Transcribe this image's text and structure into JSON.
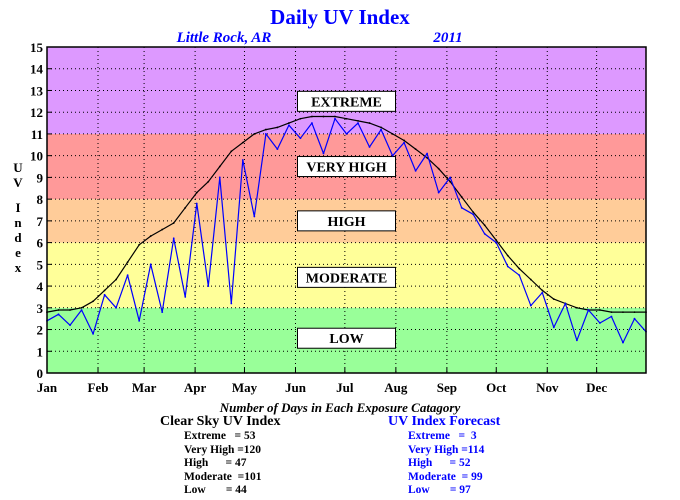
{
  "chart_data": {
    "type": "line",
    "title": "Daily UV Index",
    "subtitle_location": "Little Rock, AR",
    "subtitle_year": "2011",
    "ylabel": "UV Index",
    "ylim": [
      0,
      15
    ],
    "yticks": [
      0,
      1,
      2,
      3,
      4,
      5,
      6,
      7,
      8,
      9,
      10,
      11,
      12,
      13,
      14,
      15
    ],
    "xlim": [
      1,
      365
    ],
    "xticks": [
      {
        "label": "Jan",
        "day": 1
      },
      {
        "label": "Feb",
        "day": 32
      },
      {
        "label": "Mar",
        "day": 60
      },
      {
        "label": "Apr",
        "day": 91
      },
      {
        "label": "May",
        "day": 121
      },
      {
        "label": "Jun",
        "day": 152
      },
      {
        "label": "Jul",
        "day": 182
      },
      {
        "label": "Aug",
        "day": 213
      },
      {
        "label": "Sep",
        "day": 244
      },
      {
        "label": "Oct",
        "day": 274
      },
      {
        "label": "Nov",
        "day": 305
      },
      {
        "label": "Dec",
        "day": 335
      }
    ],
    "grid": true,
    "zones": [
      {
        "label": "LOW",
        "min": 0,
        "max": 3,
        "color": "#99ff99"
      },
      {
        "label": "MODERATE",
        "min": 3,
        "max": 6,
        "color": "#ffff99"
      },
      {
        "label": "HIGH",
        "min": 6,
        "max": 8,
        "color": "#ffcc99"
      },
      {
        "label": "VERY HIGH",
        "min": 8,
        "max": 11,
        "color": "#ff9999"
      },
      {
        "label": "EXTREME",
        "min": 11,
        "max": 15,
        "color": "#dd99ff"
      }
    ],
    "series": [
      {
        "name": "Clear Sky UV Index",
        "color": "#000000",
        "x": [
          1,
          8,
          15,
          22,
          29,
          36,
          43,
          50,
          57,
          64,
          71,
          78,
          85,
          92,
          99,
          106,
          113,
          120,
          127,
          134,
          141,
          148,
          155,
          162,
          169,
          176,
          183,
          190,
          197,
          204,
          211,
          218,
          225,
          232,
          239,
          246,
          253,
          260,
          267,
          274,
          281,
          288,
          295,
          302,
          309,
          316,
          323,
          330,
          337,
          344,
          351,
          358,
          365
        ],
        "y": [
          2.8,
          2.9,
          2.9,
          3.0,
          3.3,
          3.8,
          4.3,
          5.1,
          5.9,
          6.3,
          6.6,
          6.9,
          7.6,
          8.3,
          8.8,
          9.5,
          10.2,
          10.6,
          11.0,
          11.2,
          11.3,
          11.5,
          11.7,
          11.8,
          11.8,
          11.8,
          11.7,
          11.6,
          11.5,
          11.3,
          11.0,
          10.7,
          10.3,
          9.9,
          9.4,
          8.8,
          8.1,
          7.4,
          6.8,
          6.1,
          5.4,
          4.8,
          4.3,
          3.8,
          3.4,
          3.2,
          3.0,
          2.9,
          2.9,
          2.8,
          2.8,
          2.8,
          2.8
        ]
      },
      {
        "name": "UV Index Forecast",
        "color": "#0000ff",
        "x": [
          1,
          8,
          15,
          22,
          29,
          36,
          43,
          50,
          57,
          64,
          71,
          78,
          85,
          92,
          99,
          106,
          113,
          120,
          127,
          134,
          141,
          148,
          155,
          162,
          169,
          176,
          183,
          190,
          197,
          204,
          211,
          218,
          225,
          232,
          239,
          246,
          253,
          260,
          267,
          274,
          281,
          288,
          295,
          302,
          309,
          316,
          323,
          330,
          337,
          344,
          351,
          358,
          365
        ],
        "y": [
          2.4,
          2.7,
          2.2,
          2.9,
          1.8,
          3.6,
          3.0,
          4.5,
          2.4,
          5.0,
          2.8,
          6.2,
          3.5,
          7.8,
          4.0,
          9.0,
          3.2,
          9.8,
          7.2,
          11.0,
          10.3,
          11.4,
          10.8,
          11.5,
          10.1,
          11.7,
          11.0,
          11.5,
          10.4,
          11.2,
          10.0,
          10.6,
          9.3,
          10.1,
          8.3,
          9.0,
          7.6,
          7.3,
          6.4,
          6.0,
          4.9,
          4.5,
          3.1,
          3.7,
          2.1,
          3.2,
          1.5,
          2.9,
          2.3,
          2.6,
          1.4,
          2.5,
          1.9
        ]
      }
    ]
  },
  "stats": {
    "heading": "Number of Days in Each Exposure Catagory",
    "clear_sky": {
      "title": "Clear Sky UV Index",
      "rows": [
        {
          "label": "Extreme   = 53"
        },
        {
          "label": "Very High =120"
        },
        {
          "label": "High      = 47"
        },
        {
          "label": "Moderate  =101"
        },
        {
          "label": "Low       = 44"
        }
      ]
    },
    "forecast": {
      "title": "UV Index Forecast",
      "rows": [
        {
          "label": "Extreme   =  3"
        },
        {
          "label": "Very High =114"
        },
        {
          "label": "High      = 52"
        },
        {
          "label": "Moderate  = 99"
        },
        {
          "label": "Low       = 97"
        }
      ]
    }
  }
}
